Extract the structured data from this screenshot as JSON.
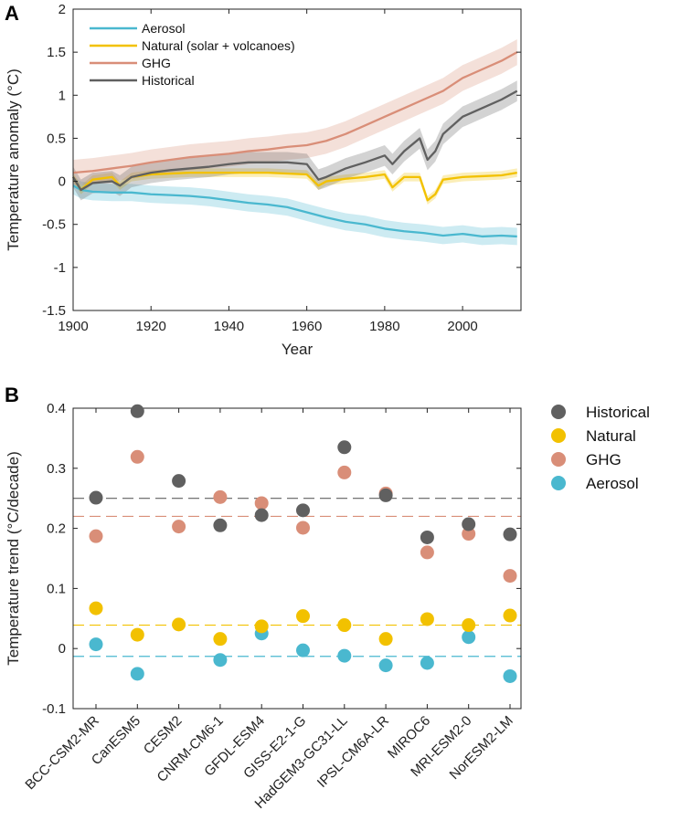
{
  "panel_a_label": "A",
  "panel_b_label": "B",
  "colors": {
    "aerosol": "#4ab8cf",
    "natural": "#f2c100",
    "ghg": "#d98e78",
    "historical": "#606060"
  },
  "chart_data": [
    {
      "type": "line",
      "xlabel": "Year",
      "ylabel": "Temperature anomaly (°C)",
      "xlim": [
        1900,
        2015
      ],
      "ylim": [
        -1.5,
        2
      ],
      "xticks": [
        "1900",
        "1920",
        "1940",
        "1960",
        "1980",
        "2000"
      ],
      "yticks": [
        "-1.5",
        "-1",
        "-0.5",
        "0",
        "0.5",
        "1",
        "1.5",
        "2"
      ],
      "legend_position": "top-left",
      "series": [
        {
          "name": "Aerosol",
          "color": "#4ab8cf",
          "points": [
            [
              1900,
              -0.05
            ],
            [
              1902,
              -0.1
            ],
            [
              1905,
              -0.12
            ],
            [
              1910,
              -0.13
            ],
            [
              1915,
              -0.13
            ],
            [
              1920,
              -0.15
            ],
            [
              1925,
              -0.16
            ],
            [
              1930,
              -0.17
            ],
            [
              1935,
              -0.19
            ],
            [
              1940,
              -0.22
            ],
            [
              1945,
              -0.25
            ],
            [
              1950,
              -0.27
            ],
            [
              1955,
              -0.3
            ],
            [
              1960,
              -0.36
            ],
            [
              1965,
              -0.42
            ],
            [
              1970,
              -0.47
            ],
            [
              1975,
              -0.5
            ],
            [
              1980,
              -0.55
            ],
            [
              1985,
              -0.58
            ],
            [
              1990,
              -0.6
            ],
            [
              1995,
              -0.63
            ],
            [
              2000,
              -0.61
            ],
            [
              2005,
              -0.64
            ],
            [
              2010,
              -0.63
            ],
            [
              2014,
              -0.64
            ]
          ],
          "band": 0.1
        },
        {
          "name": "Natural (solar + volcanoes)",
          "color": "#f2c100",
          "points": [
            [
              1900,
              0.05
            ],
            [
              1902,
              -0.1
            ],
            [
              1905,
              0.02
            ],
            [
              1910,
              0.05
            ],
            [
              1912,
              -0.05
            ],
            [
              1915,
              0.05
            ],
            [
              1920,
              0.08
            ],
            [
              1930,
              0.1
            ],
            [
              1940,
              0.1
            ],
            [
              1950,
              0.1
            ],
            [
              1960,
              0.08
            ],
            [
              1963,
              -0.05
            ],
            [
              1965,
              0.0
            ],
            [
              1970,
              0.03
            ],
            [
              1975,
              0.05
            ],
            [
              1980,
              0.08
            ],
            [
              1982,
              -0.07
            ],
            [
              1985,
              0.05
            ],
            [
              1989,
              0.05
            ],
            [
              1991,
              -0.22
            ],
            [
              1993,
              -0.15
            ],
            [
              1995,
              0.02
            ],
            [
              2000,
              0.05
            ],
            [
              2005,
              0.06
            ],
            [
              2010,
              0.07
            ],
            [
              2014,
              0.1
            ]
          ],
          "band": 0.05
        },
        {
          "name": "GHG",
          "color": "#d98e78",
          "points": [
            [
              1900,
              0.1
            ],
            [
              1905,
              0.12
            ],
            [
              1910,
              0.15
            ],
            [
              1915,
              0.18
            ],
            [
              1920,
              0.22
            ],
            [
              1925,
              0.25
            ],
            [
              1930,
              0.28
            ],
            [
              1935,
              0.3
            ],
            [
              1940,
              0.32
            ],
            [
              1945,
              0.35
            ],
            [
              1950,
              0.37
            ],
            [
              1955,
              0.4
            ],
            [
              1960,
              0.42
            ],
            [
              1965,
              0.47
            ],
            [
              1970,
              0.55
            ],
            [
              1975,
              0.65
            ],
            [
              1980,
              0.75
            ],
            [
              1985,
              0.85
            ],
            [
              1990,
              0.95
            ],
            [
              1995,
              1.05
            ],
            [
              2000,
              1.2
            ],
            [
              2005,
              1.3
            ],
            [
              2010,
              1.4
            ],
            [
              2014,
              1.5
            ]
          ],
          "band": 0.15
        },
        {
          "name": "Historical",
          "color": "#606060",
          "points": [
            [
              1900,
              0.05
            ],
            [
              1902,
              -0.1
            ],
            [
              1905,
              -0.02
            ],
            [
              1910,
              0.0
            ],
            [
              1912,
              -0.05
            ],
            [
              1915,
              0.05
            ],
            [
              1920,
              0.1
            ],
            [
              1925,
              0.13
            ],
            [
              1930,
              0.15
            ],
            [
              1935,
              0.17
            ],
            [
              1940,
              0.2
            ],
            [
              1945,
              0.22
            ],
            [
              1950,
              0.22
            ],
            [
              1955,
              0.22
            ],
            [
              1960,
              0.2
            ],
            [
              1963,
              0.02
            ],
            [
              1965,
              0.05
            ],
            [
              1970,
              0.15
            ],
            [
              1975,
              0.22
            ],
            [
              1980,
              0.3
            ],
            [
              1982,
              0.2
            ],
            [
              1985,
              0.35
            ],
            [
              1989,
              0.5
            ],
            [
              1991,
              0.25
            ],
            [
              1993,
              0.35
            ],
            [
              1995,
              0.55
            ],
            [
              2000,
              0.75
            ],
            [
              2005,
              0.85
            ],
            [
              2010,
              0.95
            ],
            [
              2014,
              1.05
            ]
          ],
          "band": 0.12
        }
      ]
    },
    {
      "type": "scatter",
      "xlabel": "",
      "ylabel": "Temperature trend (°C/decade)",
      "ylim": [
        -0.1,
        0.4
      ],
      "yticks": [
        "-0.1",
        "0",
        "0.1",
        "0.2",
        "0.3",
        "0.4"
      ],
      "categories": [
        "BCC-CSM2-MR",
        "CanESM5",
        "CESM2",
        "CNRM-CM6-1",
        "GFDL-ESM4",
        "GISS-E2-1-G",
        "HadGEM3-GC31-LL",
        "IPSL-CM6A-LR",
        "MIROC6",
        "MRI-ESM2-0",
        "NorESM2-LM"
      ],
      "legend_position": "outside-right",
      "series": [
        {
          "name": "Historical",
          "color": "#606060",
          "values": [
            0.251,
            0.395,
            0.279,
            0.205,
            0.222,
            0.23,
            0.335,
            0.255,
            0.185,
            0.207,
            0.19
          ],
          "mean": 0.25
        },
        {
          "name": "Natural",
          "color": "#f2c100",
          "values": [
            0.067,
            0.023,
            0.04,
            0.016,
            0.037,
            0.054,
            0.039,
            0.016,
            0.049,
            0.039,
            0.055
          ],
          "mean": 0.039
        },
        {
          "name": "GHG",
          "color": "#d98e78",
          "values": [
            0.187,
            0.319,
            0.203,
            0.252,
            0.242,
            0.201,
            0.293,
            0.258,
            0.16,
            0.191,
            0.121
          ],
          "mean": 0.22
        },
        {
          "name": "Aerosol",
          "color": "#4ab8cf",
          "values": [
            0.007,
            -0.042,
            null,
            -0.019,
            0.025,
            -0.003,
            -0.012,
            -0.028,
            -0.024,
            0.019,
            -0.046
          ],
          "mean": -0.013
        }
      ]
    }
  ]
}
